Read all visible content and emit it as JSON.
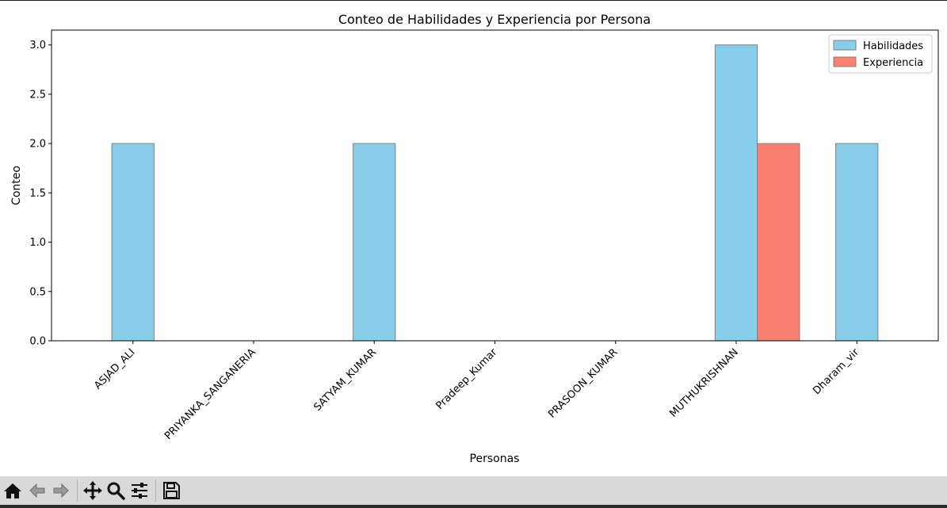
{
  "chart_data": {
    "type": "bar",
    "title": "Conteo de Habilidades y Experiencia por Persona",
    "xlabel": "Personas",
    "ylabel": "Conteo",
    "categories": [
      "ASJAD_ALI",
      "PRIYANKA_SANGANERIA",
      "SATYAM_KUMAR",
      "Pradeep_Kumar",
      "PRASOON_KUMAR",
      "MUTHUKRISHNAN",
      "Dharam_vir"
    ],
    "series": [
      {
        "name": "Habilidades",
        "values": [
          2,
          0,
          2,
          0,
          0,
          3,
          2
        ],
        "color": "#87ceeb"
      },
      {
        "name": "Experiencia",
        "values": [
          0,
          0,
          0,
          0,
          0,
          2,
          0
        ],
        "color": "#fa8072"
      }
    ],
    "ylim": [
      0,
      3.15
    ],
    "yticks": [
      "0.0",
      "0.5",
      "1.0",
      "1.5",
      "2.0",
      "2.5",
      "3.0"
    ],
    "legend_position": "top-right",
    "grid": false,
    "tick_label_rotation": 45
  },
  "toolbar": {
    "buttons": [
      {
        "name": "home-button",
        "icon": "home-icon"
      },
      {
        "name": "back-button",
        "icon": "arrow-left-icon"
      },
      {
        "name": "forward-button",
        "icon": "arrow-right-icon"
      },
      {
        "name": "pan-button",
        "icon": "move-icon"
      },
      {
        "name": "zoom-button",
        "icon": "magnifier-icon"
      },
      {
        "name": "configure-subplots-button",
        "icon": "sliders-icon"
      },
      {
        "name": "save-button",
        "icon": "floppy-disk-icon"
      }
    ]
  }
}
